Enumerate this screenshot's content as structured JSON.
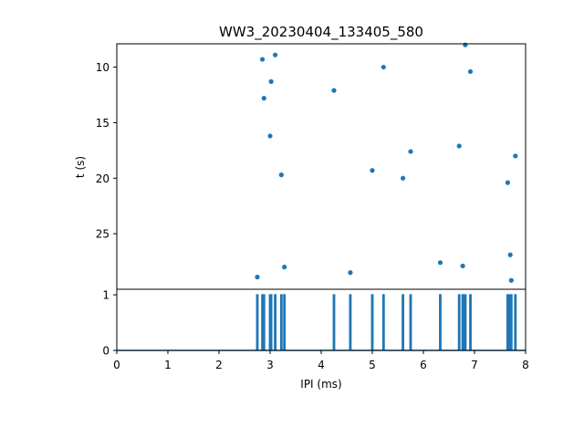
{
  "chart_data": [
    {
      "type": "scatter",
      "title": "WW3_20230404_133405_580",
      "xlabel": "",
      "ylabel": "t (s)",
      "xlim": [
        0,
        8
      ],
      "ylim": [
        30,
        7.9
      ],
      "y_inverted": true,
      "yticks": [
        10,
        15,
        20,
        25
      ],
      "color": "#1f77b4",
      "points": [
        {
          "x": 2.75,
          "y": 28.9
        },
        {
          "x": 2.85,
          "y": 9.3
        },
        {
          "x": 2.88,
          "y": 12.8
        },
        {
          "x": 3.0,
          "y": 16.2
        },
        {
          "x": 3.02,
          "y": 11.3
        },
        {
          "x": 3.1,
          "y": 8.9
        },
        {
          "x": 3.22,
          "y": 19.7
        },
        {
          "x": 3.28,
          "y": 28.0
        },
        {
          "x": 4.25,
          "y": 12.1
        },
        {
          "x": 4.57,
          "y": 28.5
        },
        {
          "x": 5.0,
          "y": 19.3
        },
        {
          "x": 5.22,
          "y": 10.0
        },
        {
          "x": 5.6,
          "y": 20.0
        },
        {
          "x": 5.75,
          "y": 17.6
        },
        {
          "x": 6.33,
          "y": 27.6
        },
        {
          "x": 6.7,
          "y": 17.1
        },
        {
          "x": 6.77,
          "y": 27.9
        },
        {
          "x": 6.82,
          "y": 8.0
        },
        {
          "x": 6.92,
          "y": 10.4
        },
        {
          "x": 7.65,
          "y": 20.4
        },
        {
          "x": 7.7,
          "y": 26.9
        },
        {
          "x": 7.72,
          "y": 29.2
        },
        {
          "x": 7.8,
          "y": 18.0
        }
      ]
    },
    {
      "type": "line",
      "title": "",
      "xlabel": "IPI (ms)",
      "ylabel": "",
      "xlim": [
        0,
        8
      ],
      "ylim": [
        0,
        1.1
      ],
      "xticks": [
        0,
        1,
        2,
        3,
        4,
        5,
        6,
        7,
        8
      ],
      "yticks": [
        0,
        1
      ],
      "color": "#1f77b4",
      "spikes_at": [
        2.75,
        2.85,
        2.88,
        3.0,
        3.02,
        3.1,
        3.22,
        3.28,
        4.25,
        4.57,
        5.0,
        5.22,
        5.6,
        5.75,
        6.33,
        6.7,
        6.77,
        6.82,
        6.92,
        7.65,
        7.7,
        7.72,
        7.8
      ],
      "spike_height": 1
    }
  ]
}
